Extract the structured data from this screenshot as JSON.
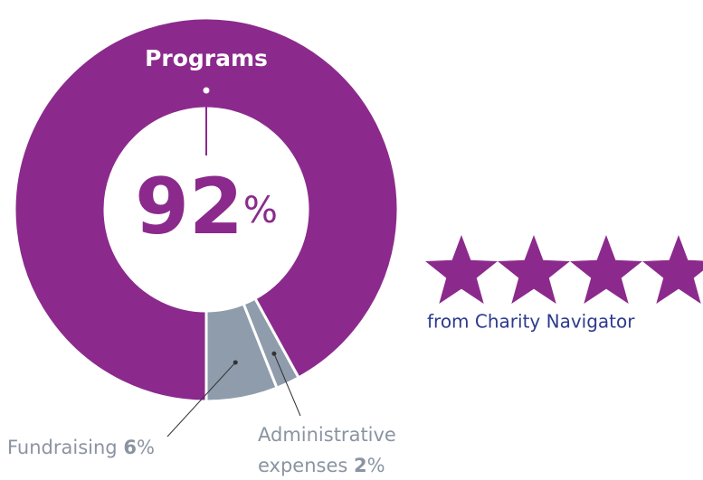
{
  "chart_data": {
    "type": "pie",
    "categories": [
      "Programs",
      "Fundraising",
      "Administrative expenses"
    ],
    "values": [
      92,
      6,
      2
    ],
    "value_labels": [
      "92%",
      "6%",
      "2%"
    ],
    "colors": [
      "#8b2a8c",
      "#8f9cac",
      "#8f9cac"
    ]
  },
  "rating": {
    "stars": 4,
    "color": "#8b2a8c",
    "source": "from Charity Navigator"
  }
}
